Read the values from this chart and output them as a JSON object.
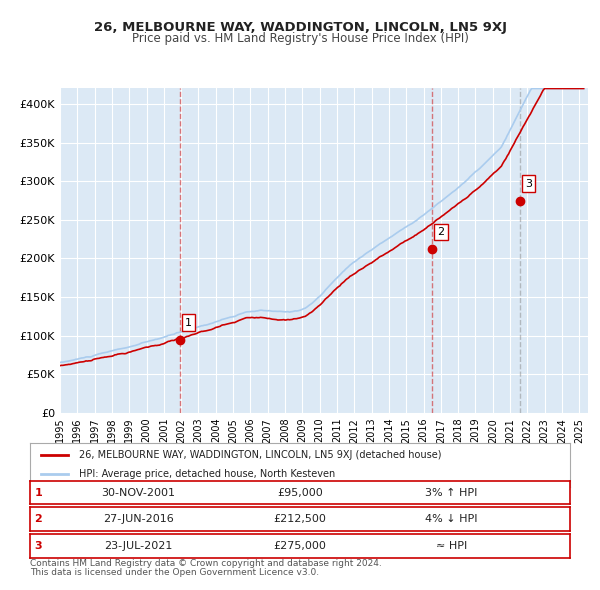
{
  "title1": "26, MELBOURNE WAY, WADDINGTON, LINCOLN, LN5 9XJ",
  "title2": "Price paid vs. HM Land Registry's House Price Index (HPI)",
  "background_color": "#dce9f5",
  "plot_bg_color": "#dce9f5",
  "fig_bg_color": "#ffffff",
  "ylabel": "",
  "ylim": [
    0,
    420000
  ],
  "yticks": [
    0,
    50000,
    100000,
    150000,
    200000,
    250000,
    300000,
    350000,
    400000
  ],
  "ytick_labels": [
    "£0",
    "£50K",
    "£100K",
    "£150K",
    "£200K",
    "£250K",
    "£300K",
    "£350K",
    "£400K"
  ],
  "xlim_start": 1995.0,
  "xlim_end": 2025.5,
  "xticks": [
    1995,
    1996,
    1997,
    1998,
    1999,
    2000,
    2001,
    2002,
    2003,
    2004,
    2005,
    2006,
    2007,
    2008,
    2009,
    2010,
    2011,
    2012,
    2013,
    2014,
    2015,
    2016,
    2017,
    2018,
    2019,
    2020,
    2021,
    2022,
    2023,
    2024,
    2025
  ],
  "sale_color": "#cc0000",
  "hpi_color": "#aaccee",
  "sale_dot_color": "#cc0000",
  "vline_color_sale": "#cc0000",
  "vline_color_sale_alpha": 0.5,
  "vline_color_hpi": "#888888",
  "vline_color_hpi_alpha": 0.5,
  "grid_color": "#ffffff",
  "transactions": [
    {
      "year": 2001.917,
      "price": 95000,
      "label": "1"
    },
    {
      "year": 2016.5,
      "price": 212500,
      "label": "2"
    },
    {
      "year": 2021.56,
      "price": 275000,
      "label": "3"
    }
  ],
  "legend_sale_label": "26, MELBOURNE WAY, WADDINGTON, LINCOLN, LN5 9XJ (detached house)",
  "legend_hpi_label": "HPI: Average price, detached house, North Kesteven",
  "table_rows": [
    {
      "num": "1",
      "date": "30-NOV-2001",
      "price": "£95,000",
      "hpi_rel": "3% ↑ HPI"
    },
    {
      "num": "2",
      "date": "27-JUN-2016",
      "price": "£212,500",
      "hpi_rel": "4% ↓ HPI"
    },
    {
      "num": "3",
      "date": "23-JUL-2021",
      "price": "£275,000",
      "hpi_rel": "≈ HPI"
    }
  ],
  "footnote1": "Contains HM Land Registry data © Crown copyright and database right 2024.",
  "footnote2": "This data is licensed under the Open Government Licence v3.0."
}
